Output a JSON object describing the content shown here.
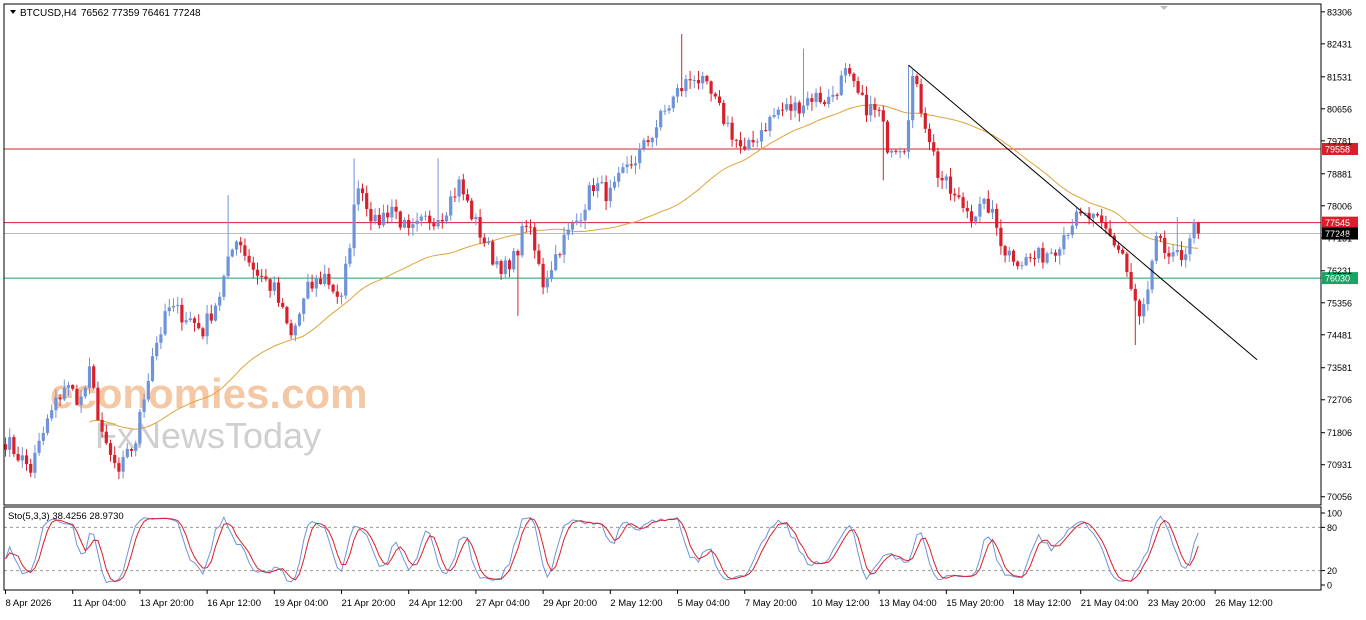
{
  "header": {
    "symbol_label": "BTCUSD,H4",
    "ohlc_label": "76562 77359 76461 77248"
  },
  "watermark": {
    "line1": "economies.com",
    "line2": "FxNewsToday"
  },
  "colors": {
    "bull": "#6f93d8",
    "bear": "#d8202c",
    "ma": "#e0a43a",
    "resistance": "#d8202c",
    "support": "#19a463",
    "trendline": "#000000",
    "stoch_main": "#6f93d8",
    "stoch_signal": "#d8202c"
  },
  "chart_data": [
    {
      "type": "candlestick",
      "y_ticks": [
        83306,
        82431,
        81531,
        80656,
        79781,
        78881,
        78006,
        77131,
        76231,
        75356,
        74481,
        73581,
        72706,
        71806,
        70931,
        70056
      ],
      "ylim": [
        69900,
        83400
      ],
      "x_tick_labels": [
        "8 Apr 2026",
        "11 Apr 04:00",
        "13 Apr 20:00",
        "16 Apr 12:00",
        "19 Apr 04:00",
        "21 Apr 20:00",
        "24 Apr 12:00",
        "27 Apr 04:00",
        "29 Apr 20:00",
        "2 May 12:00",
        "5 May 04:00",
        "7 May 20:00",
        "10 May 12:00",
        "13 May 04:00",
        "15 May 20:00",
        "18 May 12:00",
        "21 May 04:00",
        "23 May 20:00",
        "26 May 12:00"
      ],
      "x_tick_index": [
        0,
        16,
        32,
        48,
        64,
        80,
        96,
        112,
        128,
        144,
        160,
        176,
        192,
        208,
        224,
        240,
        256,
        272,
        288
      ],
      "candle_count": 285,
      "levels": [
        {
          "label": "79558",
          "value": 79558,
          "role": "resistance"
        },
        {
          "label": "77545",
          "value": 77545,
          "role": "resistance"
        },
        {
          "label": "77248",
          "value": 77248,
          "role": "current"
        },
        {
          "label": "76030",
          "value": 76030,
          "role": "support"
        }
      ],
      "trendline": {
        "from": {
          "index": 215,
          "price": 81850
        },
        "to": {
          "index": 298,
          "price": 73800
        }
      },
      "moving_average": "yes",
      "waypoints": [
        [
          0,
          71600
        ],
        [
          6,
          70800
        ],
        [
          10,
          72100
        ],
        [
          14,
          73100
        ],
        [
          18,
          72700
        ],
        [
          20,
          73400
        ],
        [
          24,
          71300
        ],
        [
          27,
          70700
        ],
        [
          31,
          71600
        ],
        [
          35,
          74000
        ],
        [
          39,
          75200
        ],
        [
          43,
          75000
        ],
        [
          47,
          74600
        ],
        [
          51,
          75600
        ],
        [
          55,
          77200
        ],
        [
          59,
          76300
        ],
        [
          64,
          75700
        ],
        [
          68,
          74400
        ],
        [
          72,
          75700
        ],
        [
          76,
          76100
        ],
        [
          80,
          75400
        ],
        [
          84,
          78700
        ],
        [
          88,
          77500
        ],
        [
          92,
          78000
        ],
        [
          96,
          77200
        ],
        [
          100,
          77600
        ],
        [
          104,
          77800
        ],
        [
          108,
          78600
        ],
        [
          112,
          77500
        ],
        [
          116,
          76600
        ],
        [
          120,
          76200
        ],
        [
          124,
          77600
        ],
        [
          128,
          75900
        ],
        [
          132,
          76900
        ],
        [
          136,
          77600
        ],
        [
          140,
          78600
        ],
        [
          144,
          78300
        ],
        [
          148,
          79000
        ],
        [
          152,
          79600
        ],
        [
          156,
          80400
        ],
        [
          160,
          81100
        ],
        [
          164,
          81600
        ],
        [
          168,
          81000
        ],
        [
          172,
          80200
        ],
        [
          176,
          79400
        ],
        [
          180,
          80100
        ],
        [
          184,
          80600
        ],
        [
          188,
          80700
        ],
        [
          192,
          81000
        ],
        [
          196,
          80900
        ],
        [
          200,
          81600
        ],
        [
          204,
          80800
        ],
        [
          208,
          80500
        ],
        [
          210,
          79700
        ],
        [
          214,
          79700
        ],
        [
          216,
          81500
        ],
        [
          218,
          80700
        ],
        [
          220,
          79900
        ],
        [
          222,
          78900
        ],
        [
          226,
          78200
        ],
        [
          230,
          77800
        ],
        [
          234,
          78000
        ],
        [
          238,
          76800
        ],
        [
          242,
          76500
        ],
        [
          246,
          76600
        ],
        [
          250,
          76900
        ],
        [
          254,
          77600
        ],
        [
          258,
          77700
        ],
        [
          262,
          77300
        ],
        [
          266,
          76700
        ],
        [
          268,
          75700
        ],
        [
          270,
          74900
        ],
        [
          272,
          75600
        ],
        [
          274,
          77000
        ],
        [
          278,
          76500
        ],
        [
          280,
          76600
        ],
        [
          282,
          77200
        ],
        [
          284,
          77500
        ],
        [
          286,
          76700
        ],
        [
          288,
          77248
        ]
      ]
    },
    {
      "type": "line",
      "label": "Sto(5,3,3) 38.4256 28.9730",
      "y_ticks": [
        100,
        80,
        20,
        0
      ],
      "ylim": [
        0,
        100
      ],
      "levels": [
        80,
        20
      ]
    }
  ]
}
